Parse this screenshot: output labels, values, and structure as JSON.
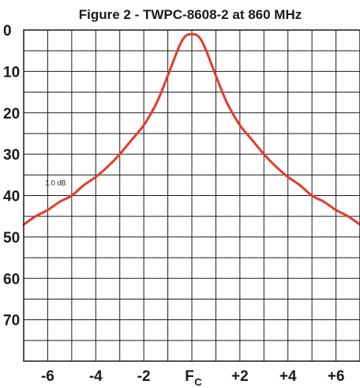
{
  "chart_data": {
    "type": "line",
    "title": "Figure 2 - TWPC-8608-2 at 860 MHz",
    "xlabel": "",
    "ylabel": "",
    "ylim": [
      0,
      80
    ],
    "y_inverted": true,
    "xlim": [
      -7,
      7
    ],
    "grid": true,
    "y_ticks": [
      {
        "value": 0,
        "label": "0"
      },
      {
        "value": 10,
        "label": "10"
      },
      {
        "value": 20,
        "label": "20"
      },
      {
        "value": 30,
        "label": "30"
      },
      {
        "value": 40,
        "label": "40"
      },
      {
        "value": 50,
        "label": "50"
      },
      {
        "value": 60,
        "label": "60"
      },
      {
        "value": 70,
        "label": "70"
      }
    ],
    "x_ticks": [
      {
        "value": -6,
        "label": "-6",
        "sub": ""
      },
      {
        "value": -4,
        "label": "-4",
        "sub": ""
      },
      {
        "value": -2,
        "label": "-2",
        "sub": ""
      },
      {
        "value": 0,
        "label": "F",
        "sub": "C"
      },
      {
        "value": 2,
        "label": "+2",
        "sub": ""
      },
      {
        "value": 4,
        "label": "+4",
        "sub": ""
      },
      {
        "value": 6,
        "label": "+6",
        "sub": ""
      }
    ],
    "series": [
      {
        "color": "#e53a2e",
        "x": [
          -7,
          -6.5,
          -6,
          -5.5,
          -5,
          -4.5,
          -4,
          -3.5,
          -3,
          -2.5,
          -2,
          -1.5,
          -1.2,
          -1,
          -0.8,
          -0.6,
          -0.4,
          -0.2,
          0,
          0.2,
          0.4,
          0.6,
          0.8,
          1,
          1.2,
          1.5,
          2,
          2.5,
          3,
          3.5,
          4,
          4.5,
          5,
          5.5,
          6,
          6.5,
          7
        ],
        "y": [
          47,
          45,
          43.5,
          41.5,
          40,
          37.5,
          35.5,
          33,
          30,
          26.5,
          23,
          18,
          14,
          11,
          8,
          5,
          2.5,
          1.2,
          1,
          1.2,
          2.5,
          5,
          8,
          11,
          14,
          18,
          23,
          26.5,
          30,
          33,
          35.5,
          37.5,
          40,
          41.5,
          43.5,
          45,
          47
        ]
      }
    ],
    "annotations": [
      {
        "text": "1.0 dB",
        "x": -6.1,
        "y": 37.5
      }
    ]
  }
}
